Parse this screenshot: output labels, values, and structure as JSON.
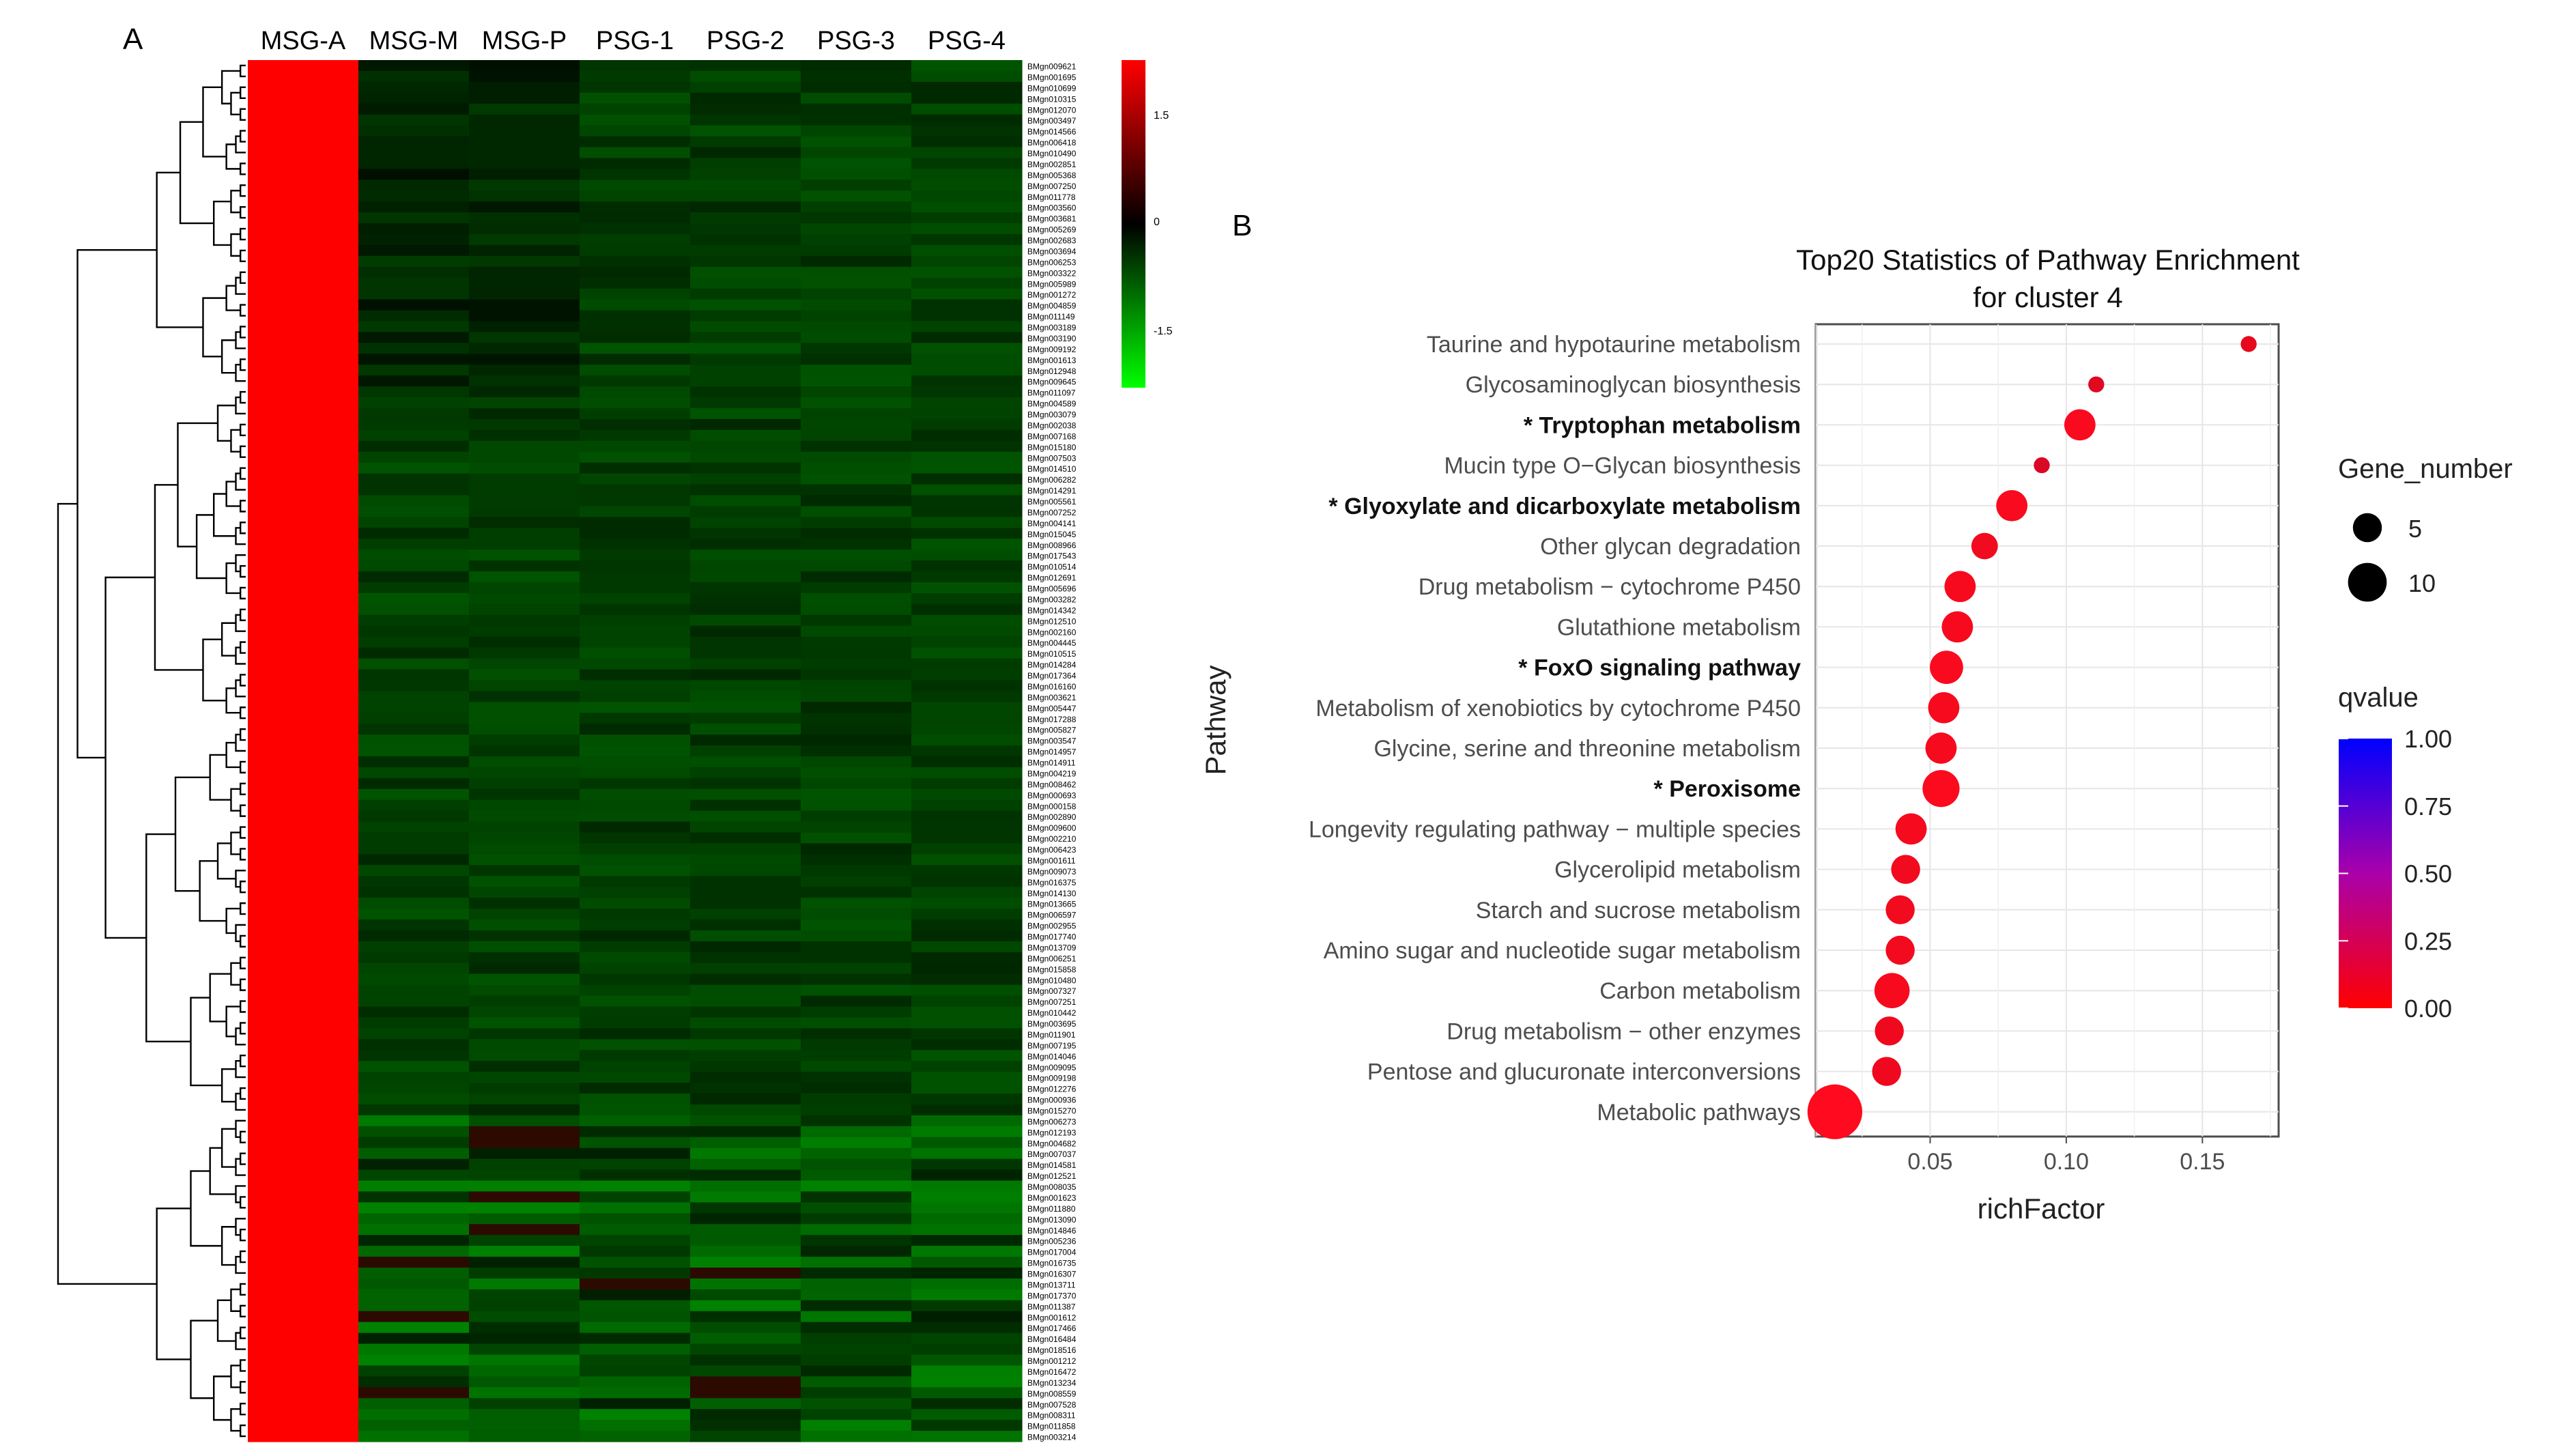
{
  "panel_a": {
    "label": "A",
    "columns": [
      "MSG-A",
      "MSG-M",
      "MSG-P",
      "PSG-1",
      "PSG-2",
      "PSG-3",
      "PSG-4"
    ],
    "color_scale": {
      "ticks": [
        "1.5",
        "0",
        "-1.5"
      ],
      "high_color": "#ff0000",
      "mid_color": "#000000",
      "low_color": "#00ff00"
    },
    "row_labels": [
      "BMgn009621",
      "BMgn001695",
      "BMgn010699",
      "BMgn010315",
      "BMgn012070",
      "BMgn003497",
      "BMgn014566",
      "BMgn006418",
      "BMgn010490",
      "BMgn002851",
      "BMgn005368",
      "BMgn007250",
      "BMgn011778",
      "BMgn003560",
      "BMgn003681",
      "BMgn005269",
      "BMgn002683",
      "BMgn003694",
      "BMgn006253",
      "BMgn003322",
      "BMgn005989",
      "BMgn001272",
      "BMgn004859",
      "BMgn011149",
      "BMgn003189",
      "BMgn003190",
      "BMgn009192",
      "BMgn001613",
      "BMgn012948",
      "BMgn009645",
      "BMgn011097",
      "BMgn004589",
      "BMgn003079",
      "BMgn002038",
      "BMgn007168",
      "BMgn015180",
      "BMgn007503",
      "BMgn014510",
      "BMgn006282",
      "BMgn014291",
      "BMgn005561",
      "BMgn007252",
      "BMgn004141",
      "BMgn015045",
      "BMgn008966",
      "BMgn017543",
      "BMgn010514",
      "BMgn012691",
      "BMgn005696",
      "BMgn003282",
      "BMgn014342",
      "BMgn012510",
      "BMgn002160",
      "BMgn004445",
      "BMgn010515",
      "BMgn014284",
      "BMgn017364",
      "BMgn016160",
      "BMgn003621",
      "BMgn005447",
      "BMgn017288",
      "BMgn005827",
      "BMgn003547",
      "BMgn014957",
      "BMgn014911",
      "BMgn004219",
      "BMgn008462",
      "BMgn000693",
      "BMgn000158",
      "BMgn002890",
      "BMgn009600",
      "BMgn002210",
      "BMgn006423",
      "BMgn001611",
      "BMgn009073",
      "BMgn016375",
      "BMgn014130",
      "BMgn013665",
      "BMgn006597",
      "BMgn002955",
      "BMgn017740",
      "BMgn013709",
      "BMgn006251",
      "BMgn015858",
      "BMgn010480",
      "BMgn007327",
      "BMgn007251",
      "BMgn010442",
      "BMgn003695",
      "BMgn011901",
      "BMgn007195",
      "BMgn014046",
      "BMgn009095",
      "BMgn009198",
      "BMgn012276",
      "BMgn000936",
      "BMgn015270",
      "BMgn006273",
      "BMgn012193",
      "BMgn004682",
      "BMgn007037",
      "BMgn014581",
      "BMgn012521",
      "BMgn008035",
      "BMgn001623",
      "BMgn011880",
      "BMgn013090",
      "BMgn014846",
      "BMgn005236",
      "BMgn017004",
      "BMgn016735",
      "BMgn016307",
      "BMgn013711",
      "BMgn017370",
      "BMgn011387",
      "BMgn001612",
      "BMgn017466",
      "BMgn016484",
      "BMgn018516",
      "BMgn001212",
      "BMgn016472",
      "BMgn013234",
      "BMgn008559",
      "BMgn007528",
      "BMgn008311",
      "BMgn011858",
      "BMgn003214"
    ]
  },
  "panel_b": {
    "label": "B",
    "colors": {
      "point_low_q": "#ff0a1e",
      "point_mid_q": "#e0106a"
    }
  },
  "chart_data": {
    "type": "scatter",
    "title": "Top20 Statistics of Pathway Enrichment",
    "subtitle": "for cluster 4",
    "xlabel": "richFactor",
    "ylabel": "Pathway",
    "xlim": [
      0.008,
      0.178
    ],
    "xticks": [
      "0.05",
      "0.10",
      "0.15"
    ],
    "xtick_values": [
      0.05,
      0.1,
      0.15
    ],
    "grid": true,
    "legend_position": "right",
    "size_legend": {
      "title": "Gene_number",
      "entries": [
        "5",
        "10"
      ],
      "values": [
        5,
        10
      ]
    },
    "color_legend": {
      "title": "qvalue",
      "ticks": [
        "1.00",
        "0.75",
        "0.50",
        "0.25",
        "0.00"
      ],
      "low_color": "#ff0000",
      "high_color": "#0000ff"
    },
    "points": [
      {
        "pathway": "Taurine and hypotaurine metabolism",
        "bold": false,
        "richFactor": 0.167,
        "gene_number": 1,
        "qvalue": 0.1
      },
      {
        "pathway": "Glycosaminoglycan biosynthesis",
        "bold": false,
        "richFactor": 0.111,
        "gene_number": 1,
        "qvalue": 0.12
      },
      {
        "pathway": "* Tryptophan metabolism",
        "bold": true,
        "richFactor": 0.105,
        "gene_number": 6,
        "qvalue": 0.02
      },
      {
        "pathway": "Mucin type O−Glycan biosynthesis",
        "bold": false,
        "richFactor": 0.091,
        "gene_number": 1,
        "qvalue": 0.15
      },
      {
        "pathway": "* Glyoxylate and dicarboxylate metabolism",
        "bold": true,
        "richFactor": 0.08,
        "gene_number": 6,
        "qvalue": 0.02
      },
      {
        "pathway": "Other glycan degradation",
        "bold": false,
        "richFactor": 0.07,
        "gene_number": 4,
        "qvalue": 0.05
      },
      {
        "pathway": "Drug metabolism − cytochrome P450",
        "bold": false,
        "richFactor": 0.061,
        "gene_number": 6,
        "qvalue": 0.03
      },
      {
        "pathway": "Glutathione metabolism",
        "bold": false,
        "richFactor": 0.06,
        "gene_number": 6,
        "qvalue": 0.03
      },
      {
        "pathway": "* FoxO signaling pathway",
        "bold": true,
        "richFactor": 0.056,
        "gene_number": 7,
        "qvalue": 0.02
      },
      {
        "pathway": "Metabolism of xenobiotics by cytochrome P450",
        "bold": false,
        "richFactor": 0.055,
        "gene_number": 6,
        "qvalue": 0.03
      },
      {
        "pathway": "Glycine, serine and threonine metabolism",
        "bold": false,
        "richFactor": 0.054,
        "gene_number": 6,
        "qvalue": 0.03
      },
      {
        "pathway": "* Peroxisome",
        "bold": true,
        "richFactor": 0.054,
        "gene_number": 9,
        "qvalue": 0.01
      },
      {
        "pathway": "Longevity regulating pathway − multiple species",
        "bold": false,
        "richFactor": 0.043,
        "gene_number": 6,
        "qvalue": 0.04
      },
      {
        "pathway": "Glycerolipid metabolism",
        "bold": false,
        "richFactor": 0.041,
        "gene_number": 5,
        "qvalue": 0.05
      },
      {
        "pathway": "Starch and sucrose metabolism",
        "bold": false,
        "richFactor": 0.039,
        "gene_number": 5,
        "qvalue": 0.05
      },
      {
        "pathway": "Amino sugar and nucleotide sugar metabolism",
        "bold": false,
        "richFactor": 0.039,
        "gene_number": 5,
        "qvalue": 0.05
      },
      {
        "pathway": "Carbon metabolism",
        "bold": false,
        "richFactor": 0.036,
        "gene_number": 8,
        "qvalue": 0.03
      },
      {
        "pathway": "Drug metabolism − other enzymes",
        "bold": false,
        "richFactor": 0.035,
        "gene_number": 5,
        "qvalue": 0.06
      },
      {
        "pathway": "Pentose and glucuronate interconversions",
        "bold": false,
        "richFactor": 0.034,
        "gene_number": 5,
        "qvalue": 0.06
      },
      {
        "pathway": "Metabolic pathways",
        "bold": false,
        "richFactor": 0.015,
        "gene_number": 22,
        "qvalue": 0.0
      }
    ]
  }
}
